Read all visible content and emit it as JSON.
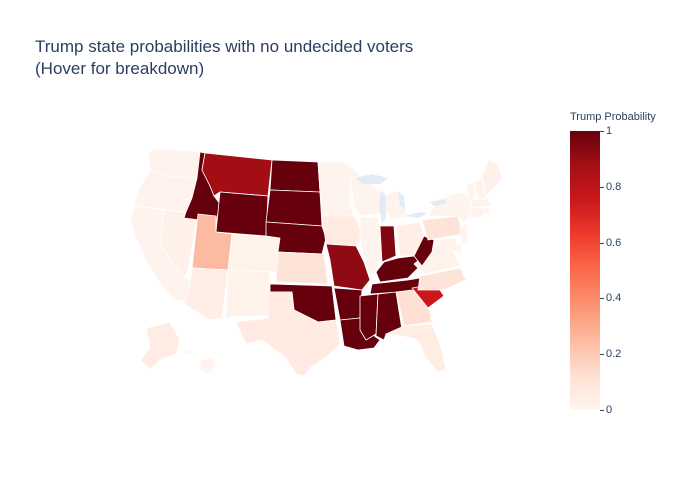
{
  "title": "Trump state probabilities with no undecided voters\n(Hover for breakdown)",
  "colorbar": {
    "title": "Trump Probability",
    "ticks": [
      "1",
      "0.8",
      "0.6",
      "0.4",
      "0.2",
      "0"
    ],
    "tick_values": [
      1,
      0.8,
      0.6,
      0.4,
      0.2,
      0
    ],
    "colorscale": [
      "#fff5f0",
      "#fee0d2",
      "#fcbba1",
      "#fc9272",
      "#fb6a4a",
      "#ef3b2c",
      "#cb181d",
      "#a50f15",
      "#67000d"
    ]
  },
  "states": [
    {
      "code": "WA",
      "value": 0.01
    },
    {
      "code": "OR",
      "value": 0.01
    },
    {
      "code": "CA",
      "value": 0.01
    },
    {
      "code": "NV",
      "value": 0.03
    },
    {
      "code": "ID",
      "value": 1.0
    },
    {
      "code": "MT",
      "value": 0.88
    },
    {
      "code": "WY",
      "value": 1.0
    },
    {
      "code": "UT",
      "value": 0.25
    },
    {
      "code": "AZ",
      "value": 0.04
    },
    {
      "code": "CO",
      "value": 0.02
    },
    {
      "code": "NM",
      "value": 0.02
    },
    {
      "code": "ND",
      "value": 1.0
    },
    {
      "code": "SD",
      "value": 1.0
    },
    {
      "code": "NE",
      "value": 1.0
    },
    {
      "code": "KS",
      "value": 0.1
    },
    {
      "code": "OK",
      "value": 1.0
    },
    {
      "code": "TX",
      "value": 0.06
    },
    {
      "code": "MN",
      "value": 0.01
    },
    {
      "code": "IA",
      "value": 0.06
    },
    {
      "code": "MO",
      "value": 0.92
    },
    {
      "code": "AR",
      "value": 1.0
    },
    {
      "code": "LA",
      "value": 1.0
    },
    {
      "code": "WI",
      "value": 0.01
    },
    {
      "code": "IL",
      "value": 0.01
    },
    {
      "code": "MI",
      "value": 0.01
    },
    {
      "code": "IN",
      "value": 0.95
    },
    {
      "code": "OH",
      "value": 0.04
    },
    {
      "code": "KY",
      "value": 1.0
    },
    {
      "code": "TN",
      "value": 1.0
    },
    {
      "code": "MS",
      "value": 1.0
    },
    {
      "code": "AL",
      "value": 1.0
    },
    {
      "code": "GA",
      "value": 0.12
    },
    {
      "code": "FL",
      "value": 0.05
    },
    {
      "code": "SC",
      "value": 0.75
    },
    {
      "code": "NC",
      "value": 0.1
    },
    {
      "code": "VA",
      "value": 0.02
    },
    {
      "code": "WV",
      "value": 1.0
    },
    {
      "code": "PA",
      "value": 0.1
    },
    {
      "code": "NY",
      "value": 0.01
    },
    {
      "code": "VT",
      "value": 0.01
    },
    {
      "code": "NH",
      "value": 0.02
    },
    {
      "code": "ME",
      "value": 0.03
    },
    {
      "code": "MA",
      "value": 0.01
    },
    {
      "code": "RI",
      "value": 0.01
    },
    {
      "code": "CT",
      "value": 0.01
    },
    {
      "code": "NJ",
      "value": 0.01
    },
    {
      "code": "DE",
      "value": 0.01
    },
    {
      "code": "MD",
      "value": 0.01
    },
    {
      "code": "AK",
      "value": 0.05
    },
    {
      "code": "HI",
      "value": 0.01
    }
  ]
}
